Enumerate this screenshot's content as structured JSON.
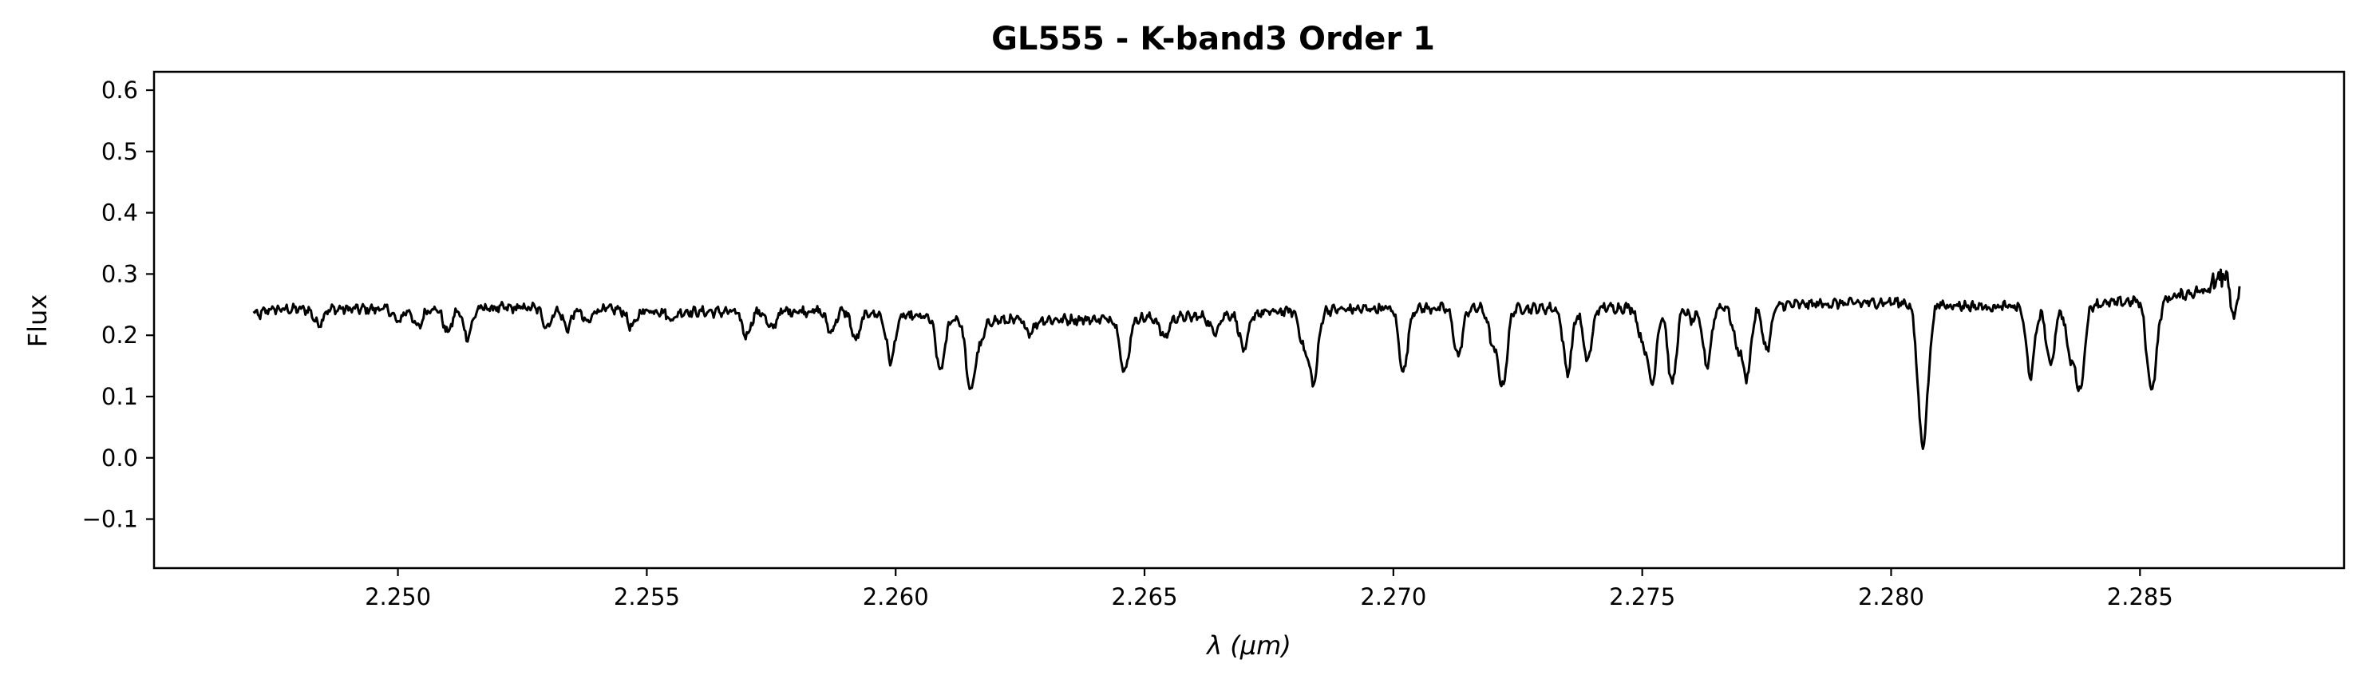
{
  "chart_data": {
    "type": "line",
    "title": "GL555 - K-band3 Order 1",
    "xlabel": "λ (μm)",
    "ylabel": "Flux",
    "xlim": [
      2.2451,
      2.2891
    ],
    "ylim": [
      -0.18,
      0.63
    ],
    "xticks": [
      2.25,
      2.255,
      2.26,
      2.265,
      2.27,
      2.275,
      2.28,
      2.285
    ],
    "xtick_labels": [
      "2.250",
      "2.255",
      "2.260",
      "2.265",
      "2.270",
      "2.275",
      "2.280",
      "2.285"
    ],
    "yticks": [
      -0.1,
      0.0,
      0.1,
      0.2,
      0.3,
      0.4,
      0.5,
      0.6
    ],
    "ytick_labels": [
      "−0.1",
      "0.0",
      "0.1",
      "0.2",
      "0.3",
      "0.4",
      "0.5",
      "0.6"
    ],
    "grid": false,
    "line_color": "#000000",
    "series": [
      {
        "x_start": 2.2471,
        "x_end": 2.287,
        "continuum": [
          [
            2.2471,
            0.242
          ],
          [
            2.25,
            0.243
          ],
          [
            2.253,
            0.245
          ],
          [
            2.256,
            0.238
          ],
          [
            2.259,
            0.24
          ],
          [
            2.26,
            0.232
          ],
          [
            2.262,
            0.224
          ],
          [
            2.264,
            0.226
          ],
          [
            2.266,
            0.23
          ],
          [
            2.268,
            0.24
          ],
          [
            2.27,
            0.244
          ],
          [
            2.273,
            0.244
          ],
          [
            2.276,
            0.246
          ],
          [
            2.28,
            0.254
          ],
          [
            2.282,
            0.246
          ],
          [
            2.284,
            0.25
          ],
          [
            2.2855,
            0.26
          ],
          [
            2.2862,
            0.272
          ],
          [
            2.2866,
            0.29
          ],
          [
            2.287,
            0.34
          ]
        ],
        "absorption_lines": [
          [
            2.2472,
            0.233
          ],
          [
            2.2484,
            0.218
          ],
          [
            2.25,
            0.222
          ],
          [
            2.2504,
            0.212
          ],
          [
            2.251,
            0.205
          ],
          [
            2.2514,
            0.198
          ],
          [
            2.253,
            0.214
          ],
          [
            2.2534,
            0.212
          ],
          [
            2.2538,
            0.22
          ],
          [
            2.2547,
            0.213
          ],
          [
            2.2555,
            0.226
          ],
          [
            2.257,
            0.2
          ],
          [
            2.2575,
            0.21
          ],
          [
            2.2587,
            0.206
          ],
          [
            2.2592,
            0.192
          ],
          [
            2.2599,
            0.158
          ],
          [
            2.2617,
            0.19
          ],
          [
            2.2627,
            0.205
          ],
          [
            2.2654,
            0.196
          ],
          [
            2.2664,
            0.205
          ],
          [
            2.267,
            0.175
          ],
          [
            2.2682,
            0.184
          ],
          [
            2.2713,
            0.166
          ],
          [
            2.272,
            0.187
          ],
          [
            2.2735,
            0.14
          ],
          [
            2.2739,
            0.158
          ],
          [
            2.275,
            0.195
          ],
          [
            2.276,
            0.225
          ],
          [
            2.2763,
            0.152
          ],
          [
            2.2769,
            0.188
          ],
          [
            2.2775,
            0.177
          ],
          [
            2.2807,
            0.142
          ],
          [
            2.2832,
            0.152
          ],
          [
            2.2836,
            0.168
          ],
          [
            2.2853,
            0.195
          ],
          [
            2.2869,
            0.23
          ],
          [
            2.2609,
            0.142
          ],
          [
            2.2615,
            0.11
          ],
          [
            2.2646,
            0.138
          ],
          [
            2.2684,
            0.125
          ],
          [
            2.2702,
            0.14
          ],
          [
            2.2722,
            0.12
          ],
          [
            2.2752,
            0.125
          ],
          [
            2.2756,
            0.12
          ],
          [
            2.2771,
            0.135
          ],
          [
            2.2806,
            0.092
          ],
          [
            2.2828,
            0.135
          ],
          [
            2.2838,
            0.115
          ],
          [
            2.2852,
            0.152
          ]
        ]
      }
    ]
  }
}
